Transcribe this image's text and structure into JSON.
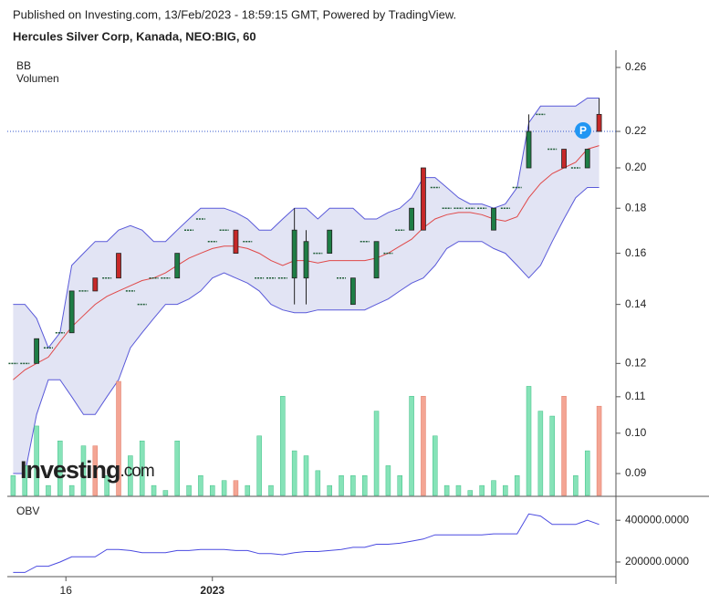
{
  "chart_data": {
    "type": "candlestick",
    "subtitle": "Published on Investing.com, 13/Feb/2023 - 18:59:15 GMT, Powered by TradingView.",
    "title": "Hercules Silver Corp, Kanada, NEO:BIG, 60",
    "open": [
      0.12,
      0.12,
      0.12,
      0.125,
      0.13,
      0.13,
      0.145,
      0.15,
      0.15,
      0.16,
      0.145,
      0.14,
      0.15,
      0.15,
      0.15,
      0.17,
      0.175,
      0.165,
      0.17,
      0.17,
      0.165,
      0.15,
      0.15,
      0.15,
      0.15,
      0.15,
      0.16,
      0.16,
      0.15,
      0.14,
      0.165,
      0.15,
      0.16,
      0.17,
      0.17,
      0.2,
      0.19,
      0.18,
      0.18,
      0.18,
      0.18,
      0.17,
      0.18,
      0.19,
      0.2,
      0.23,
      0.21,
      0.21,
      0.2,
      0.2,
      0.23
    ],
    "high": [
      0.12,
      0.12,
      0.128,
      0.125,
      0.13,
      0.145,
      0.145,
      0.15,
      0.15,
      0.16,
      0.145,
      0.14,
      0.15,
      0.15,
      0.16,
      0.17,
      0.175,
      0.165,
      0.17,
      0.17,
      0.165,
      0.15,
      0.15,
      0.15,
      0.18,
      0.17,
      0.16,
      0.17,
      0.15,
      0.15,
      0.165,
      0.165,
      0.16,
      0.17,
      0.18,
      0.2,
      0.19,
      0.18,
      0.18,
      0.18,
      0.18,
      0.18,
      0.18,
      0.19,
      0.23,
      0.23,
      0.21,
      0.21,
      0.2,
      0.21,
      0.24
    ],
    "low": [
      0.12,
      0.12,
      0.12,
      0.125,
      0.13,
      0.13,
      0.145,
      0.145,
      0.15,
      0.15,
      0.145,
      0.14,
      0.15,
      0.15,
      0.15,
      0.17,
      0.175,
      0.165,
      0.17,
      0.16,
      0.165,
      0.15,
      0.15,
      0.15,
      0.14,
      0.14,
      0.16,
      0.16,
      0.15,
      0.14,
      0.165,
      0.15,
      0.16,
      0.17,
      0.17,
      0.17,
      0.19,
      0.18,
      0.18,
      0.18,
      0.18,
      0.17,
      0.18,
      0.19,
      0.2,
      0.23,
      0.21,
      0.2,
      0.2,
      0.2,
      0.22
    ],
    "close": [
      0.12,
      0.12,
      0.128,
      0.125,
      0.13,
      0.145,
      0.145,
      0.145,
      0.15,
      0.15,
      0.145,
      0.14,
      0.15,
      0.15,
      0.16,
      0.17,
      0.175,
      0.165,
      0.17,
      0.16,
      0.165,
      0.15,
      0.15,
      0.15,
      0.17,
      0.165,
      0.16,
      0.17,
      0.15,
      0.15,
      0.165,
      0.165,
      0.16,
      0.17,
      0.18,
      0.17,
      0.19,
      0.18,
      0.18,
      0.18,
      0.18,
      0.18,
      0.18,
      0.19,
      0.22,
      0.23,
      0.21,
      0.2,
      0.2,
      0.21,
      0.22
    ],
    "up_color": "#1e7d45",
    "down_color": "#c62828",
    "bands": {
      "name": "BB",
      "line_color": "#5959d9",
      "fill": "#e2e4f4",
      "middle_color": "#e04848",
      "upper": [
        0.14,
        0.14,
        0.135,
        0.125,
        0.13,
        0.155,
        0.16,
        0.165,
        0.165,
        0.17,
        0.172,
        0.17,
        0.165,
        0.165,
        0.17,
        0.175,
        0.18,
        0.18,
        0.18,
        0.178,
        0.175,
        0.17,
        0.17,
        0.175,
        0.18,
        0.18,
        0.175,
        0.18,
        0.18,
        0.18,
        0.175,
        0.175,
        0.178,
        0.18,
        0.185,
        0.195,
        0.195,
        0.19,
        0.185,
        0.182,
        0.182,
        0.18,
        0.182,
        0.19,
        0.225,
        0.235,
        0.235,
        0.235,
        0.235,
        0.24,
        0.24
      ],
      "middle": [
        0.115,
        0.118,
        0.12,
        0.122,
        0.127,
        0.132,
        0.136,
        0.14,
        0.143,
        0.145,
        0.147,
        0.149,
        0.15,
        0.152,
        0.155,
        0.158,
        0.16,
        0.162,
        0.163,
        0.163,
        0.162,
        0.16,
        0.157,
        0.155,
        0.157,
        0.157,
        0.156,
        0.157,
        0.157,
        0.157,
        0.157,
        0.158,
        0.16,
        0.163,
        0.166,
        0.171,
        0.175,
        0.177,
        0.178,
        0.178,
        0.177,
        0.175,
        0.174,
        0.176,
        0.185,
        0.192,
        0.197,
        0.2,
        0.203,
        0.21,
        0.212
      ],
      "lower": [
        0.09,
        0.09,
        0.105,
        0.115,
        0.115,
        0.11,
        0.105,
        0.105,
        0.11,
        0.115,
        0.125,
        0.13,
        0.135,
        0.14,
        0.14,
        0.142,
        0.145,
        0.15,
        0.152,
        0.15,
        0.148,
        0.145,
        0.14,
        0.138,
        0.137,
        0.137,
        0.138,
        0.138,
        0.138,
        0.138,
        0.138,
        0.14,
        0.142,
        0.145,
        0.148,
        0.15,
        0.155,
        0.162,
        0.165,
        0.165,
        0.165,
        0.162,
        0.16,
        0.155,
        0.15,
        0.155,
        0.165,
        0.175,
        0.185,
        0.19,
        0.19
      ]
    },
    "volume": {
      "name": "Volumen",
      "up_color": "#86e3b8",
      "down_color": "#f4a594",
      "values": [
        20,
        30,
        70,
        10,
        55,
        10,
        50,
        50,
        20,
        115,
        40,
        55,
        10,
        5,
        55,
        10,
        20,
        10,
        15,
        15,
        10,
        60,
        10,
        100,
        45,
        40,
        25,
        10,
        20,
        20,
        20,
        85,
        30,
        20,
        100,
        100,
        60,
        10,
        10,
        5,
        10,
        15,
        10,
        20,
        110,
        85,
        80,
        100,
        20,
        45,
        90
      ]
    },
    "ylim": [
      0.085,
      0.272
    ],
    "log_scale": true,
    "yticks": [
      0.26,
      0.22,
      {
        "value": 0.2,
        "label": "0.20"
      },
      0.18,
      0.16,
      0.14,
      0.12,
      0.11,
      {
        "value": 0.1,
        "label": "0.10"
      },
      0.09
    ],
    "xlim": [
      -0.5,
      50.5
    ],
    "xticks": [
      {
        "value": 4.5,
        "label": "16"
      },
      {
        "value": 17,
        "label": "2023"
      }
    ],
    "last_price": 0.22,
    "marker": "P",
    "watermark": "Investing",
    "watermark_suffix": ".com",
    "obv": {
      "name": "OBV",
      "color": "#4a4ae0",
      "values": [
        150000,
        150000,
        180000,
        180000,
        200000,
        225000,
        225000,
        225000,
        260000,
        260000,
        255000,
        245000,
        245000,
        245000,
        255000,
        255000,
        260000,
        260000,
        260000,
        255000,
        255000,
        240000,
        240000,
        235000,
        245000,
        250000,
        250000,
        255000,
        260000,
        270000,
        270000,
        285000,
        285000,
        290000,
        300000,
        310000,
        330000,
        330000,
        330000,
        330000,
        330000,
        335000,
        335000,
        335000,
        430000,
        420000,
        380000,
        380000,
        380000,
        400000,
        380000
      ],
      "ylim": [
        130000,
        510000
      ],
      "yticks": [
        {
          "value": 400000,
          "label": "400000.0000"
        },
        {
          "value": 200000,
          "label": "200000.0000"
        }
      ]
    }
  }
}
